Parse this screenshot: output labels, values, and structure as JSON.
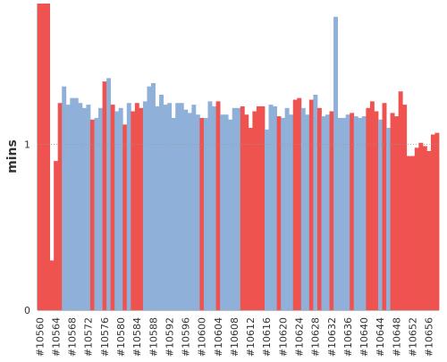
{
  "chart_data": {
    "type": "area",
    "title": "",
    "xlabel": "",
    "ylabel": "mins",
    "ylim": [
      0,
      1.85
    ],
    "y_ticks": [
      0,
      1
    ],
    "y_tick_labels": [
      "0",
      "1"
    ],
    "grid": "dotted horizontal line at 1",
    "legend": "none",
    "colors": {
      "pass": "#8fb0d8",
      "fail": "#ef5350",
      "axis": "#bbbbbb",
      "grid": "#999999"
    },
    "categories": [
      "#10560",
      "#10561",
      "#10562",
      "#10563",
      "#10564",
      "#10565",
      "#10566",
      "#10567",
      "#10568",
      "#10569",
      "#10570",
      "#10571",
      "#10572",
      "#10573",
      "#10574",
      "#10575",
      "#10576",
      "#10577",
      "#10578",
      "#10579",
      "#10580",
      "#10581",
      "#10582",
      "#10583",
      "#10584",
      "#10585",
      "#10586",
      "#10587",
      "#10588",
      "#10589",
      "#10590",
      "#10591",
      "#10592",
      "#10593",
      "#10594",
      "#10595",
      "#10596",
      "#10597",
      "#10598",
      "#10599",
      "#10600",
      "#10601",
      "#10602",
      "#10603",
      "#10604",
      "#10605",
      "#10606",
      "#10607",
      "#10608",
      "#10609",
      "#10610",
      "#10611",
      "#10612",
      "#10613",
      "#10614",
      "#10615",
      "#10616",
      "#10617",
      "#10618",
      "#10619",
      "#10620",
      "#10621",
      "#10622",
      "#10623",
      "#10624",
      "#10625",
      "#10626",
      "#10627",
      "#10628",
      "#10629",
      "#10630",
      "#10631",
      "#10632",
      "#10633",
      "#10634",
      "#10635",
      "#10636",
      "#10637",
      "#10638",
      "#10639",
      "#10640",
      "#10641",
      "#10642",
      "#10643",
      "#10644",
      "#10645",
      "#10646",
      "#10647",
      "#10648",
      "#10649",
      "#10650",
      "#10651",
      "#10652",
      "#10653",
      "#10654",
      "#10655",
      "#10656",
      "#10657",
      "#10658"
    ],
    "x_tick_labels": [
      "#10560",
      "#10564",
      "#10568",
      "#10572",
      "#10576",
      "#10580",
      "#10584",
      "#10588",
      "#10592",
      "#10596",
      "#10600",
      "#10604",
      "#10608",
      "#10612",
      "#10616",
      "#10620",
      "#10624",
      "#10628",
      "#10632",
      "#10636",
      "#10640",
      "#10644",
      "#10648",
      "#10652",
      "#10656"
    ],
    "values": [
      1.85,
      1.85,
      1.85,
      0.3,
      0.9,
      1.25,
      1.35,
      1.24,
      1.28,
      1.28,
      1.25,
      1.22,
      1.24,
      1.15,
      1.16,
      1.22,
      1.38,
      1.4,
      1.24,
      1.2,
      1.22,
      1.12,
      1.25,
      1.2,
      1.25,
      1.22,
      1.26,
      1.35,
      1.37,
      1.23,
      1.3,
      1.24,
      1.25,
      1.16,
      1.25,
      1.25,
      1.21,
      1.19,
      1.24,
      1.18,
      1.16,
      1.16,
      1.26,
      1.23,
      1.26,
      1.18,
      1.18,
      1.15,
      1.22,
      1.22,
      1.23,
      1.18,
      1.1,
      1.2,
      1.23,
      1.23,
      1.09,
      1.24,
      1.23,
      1.17,
      1.16,
      1.22,
      1.18,
      1.27,
      1.28,
      1.22,
      1.18,
      1.27,
      1.3,
      1.22,
      1.17,
      1.18,
      1.2,
      1.77,
      1.16,
      1.16,
      1.18,
      1.19,
      1.17,
      1.16,
      1.17,
      1.22,
      1.26,
      1.2,
      1.15,
      1.25,
      1.1,
      1.19,
      1.17,
      1.32,
      1.24,
      0.93,
      0.93,
      0.98,
      1.01,
      0.99,
      0.96,
      1.06,
      1.07
    ],
    "status": [
      "fail",
      "fail",
      "fail",
      "fail",
      "fail",
      "fail",
      "pass",
      "pass",
      "pass",
      "pass",
      "pass",
      "pass",
      "pass",
      "fail",
      "pass",
      "pass",
      "fail",
      "pass",
      "fail",
      "pass",
      "pass",
      "fail",
      "pass",
      "fail",
      "fail",
      "fail",
      "pass",
      "pass",
      "pass",
      "pass",
      "pass",
      "pass",
      "pass",
      "pass",
      "pass",
      "pass",
      "pass",
      "pass",
      "pass",
      "pass",
      "fail",
      "pass",
      "pass",
      "pass",
      "fail",
      "pass",
      "pass",
      "pass",
      "pass",
      "pass",
      "fail",
      "fail",
      "fail",
      "fail",
      "fail",
      "fail",
      "pass",
      "pass",
      "pass",
      "fail",
      "pass",
      "pass",
      "pass",
      "fail",
      "fail",
      "pass",
      "pass",
      "fail",
      "pass",
      "fail",
      "pass",
      "pass",
      "fail",
      "pass",
      "pass",
      "pass",
      "pass",
      "fail",
      "pass",
      "pass",
      "pass",
      "fail",
      "fail",
      "fail",
      "pass",
      "fail",
      "pass",
      "fail",
      "fail",
      "fail",
      "fail",
      "fail",
      "fail",
      "fail",
      "fail",
      "fail",
      "fail",
      "fail",
      "fail"
    ]
  }
}
